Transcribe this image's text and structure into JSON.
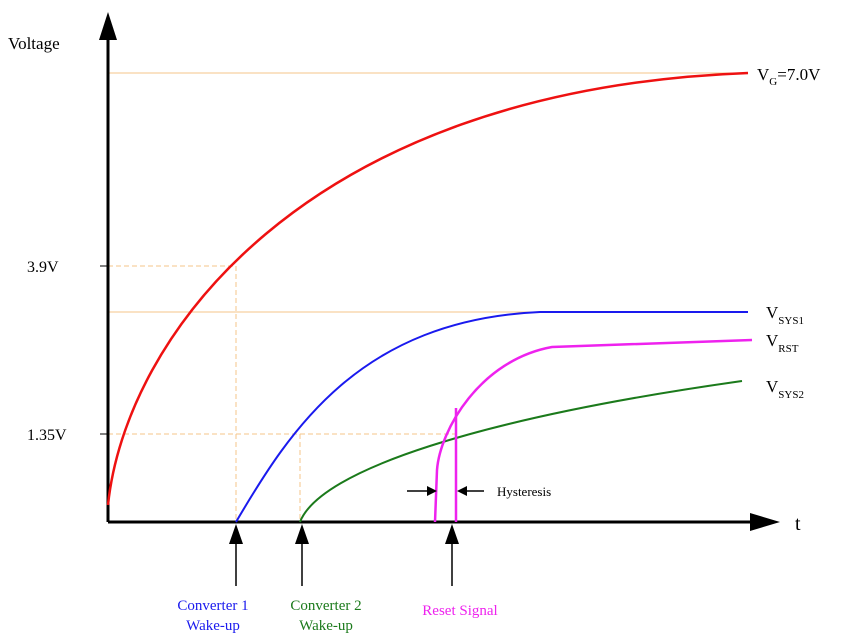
{
  "axes": {
    "y_label": "Voltage",
    "x_label": "t",
    "y_ticks": [
      "3.9V",
      "1.35V"
    ]
  },
  "curve_labels": {
    "vg_base": "V",
    "vg_sub": "G",
    "vg_suffix": "=7.0V",
    "vsys1_base": "V",
    "vsys1_sub": "SYS1",
    "vrst_base": "V",
    "vrst_sub": "RST",
    "vsys2_base": "V",
    "vsys2_sub": "SYS2"
  },
  "annotations": {
    "hysteresis": "Hysteresis"
  },
  "events": {
    "converter1_line1": "Converter 1",
    "converter1_line2": "Wake-up",
    "converter2_line1": "Converter 2",
    "converter2_line2": "Wake-up",
    "reset": "Reset Signal"
  },
  "colors": {
    "vg": "#ee1111",
    "vsys1": "#1a1aee",
    "vsys2": "#1b7a1b",
    "vrst": "#ee22ee",
    "guide": "#f5c48a",
    "axis": "#000000"
  }
}
